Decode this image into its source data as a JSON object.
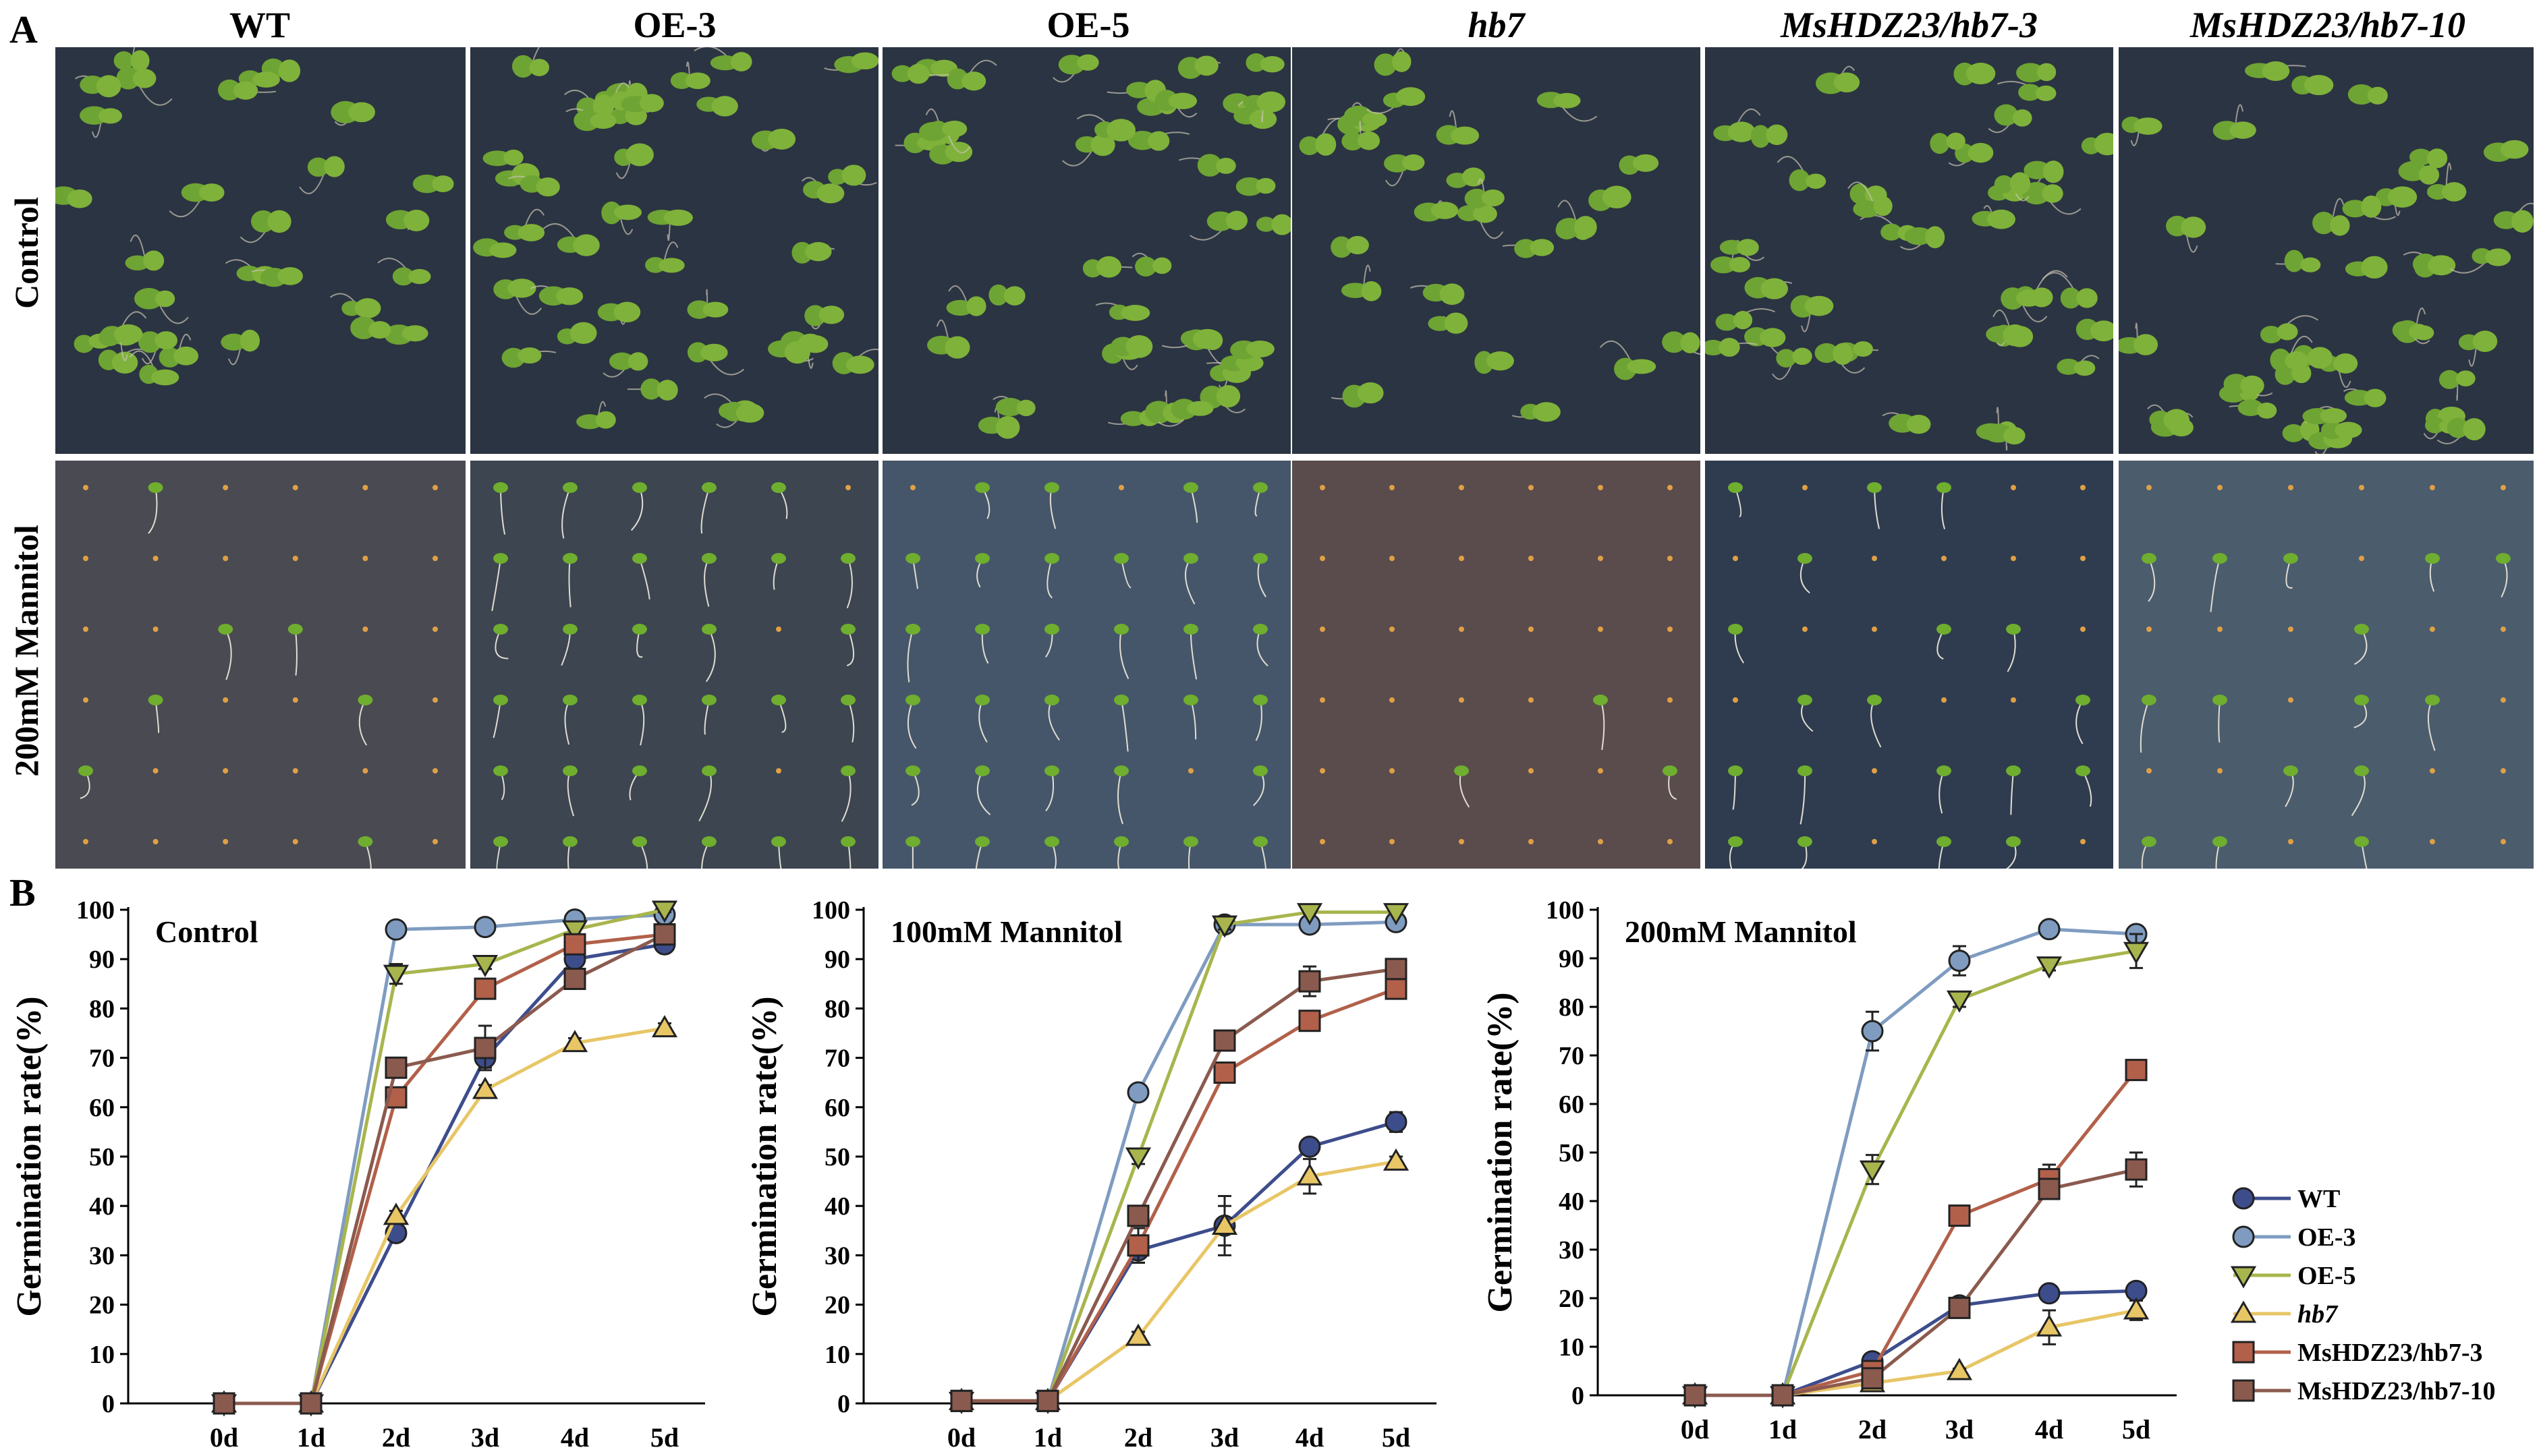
{
  "panel_a": {
    "letter": "A",
    "columns": [
      "WT",
      "OE-3",
      "OE-5",
      "hb7",
      "MsHDZ23/hb7-3",
      "MsHDZ23/hb7-10"
    ],
    "rows": [
      "Control",
      "200mM Mannitol"
    ]
  },
  "panel_b": {
    "letter": "B"
  },
  "colors": {
    "WT": "#3d4d8c",
    "OE-3": "#7f9cc0",
    "OE-5": "#a8b54d",
    "hb7": "#e8c666",
    "MsHDZ23/hb7-3": "#b2604a",
    "MsHDZ23/hb7-10": "#8b5a4e"
  },
  "chart_data": [
    {
      "type": "line",
      "title": "Control",
      "ylabel": "Germination rate(%)",
      "xlabel": "",
      "categories": [
        "0d",
        "1d",
        "2d",
        "3d",
        "4d",
        "5d"
      ],
      "yticks": [
        "0",
        "10",
        "20",
        "30",
        "40",
        "50",
        "60",
        "70",
        "80",
        "90",
        "100"
      ],
      "ylim": [
        0,
        100
      ],
      "series": [
        {
          "name": "WT",
          "values": [
            0,
            0,
            34.5,
            70,
            90,
            93
          ],
          "errors": [
            0,
            0,
            1,
            2,
            1.5,
            1
          ]
        },
        {
          "name": "OE-3",
          "values": [
            0,
            0,
            96,
            96.5,
            98,
            99
          ],
          "errors": [
            0,
            0,
            1,
            1,
            0.5,
            0.5
          ]
        },
        {
          "name": "OE-5",
          "values": [
            0,
            0,
            87,
            89,
            96,
            100
          ],
          "errors": [
            0,
            0,
            2,
            1,
            1,
            0.5
          ]
        },
        {
          "name": "hb7",
          "values": [
            0,
            0,
            38,
            63.5,
            73,
            76
          ],
          "errors": [
            0,
            0,
            1,
            1,
            1,
            1
          ]
        },
        {
          "name": "MsHDZ23/hb7-3",
          "values": [
            0,
            0,
            62,
            84,
            93,
            95
          ],
          "errors": [
            0,
            0,
            1,
            2,
            1,
            1
          ]
        },
        {
          "name": "MsHDZ23/hb7-10",
          "values": [
            0,
            0,
            68,
            72,
            86,
            95
          ],
          "errors": [
            0,
            0,
            1.5,
            4.5,
            1,
            1
          ]
        }
      ]
    },
    {
      "type": "line",
      "title": "100mM Mannitol",
      "ylabel": "Germination rate(%)",
      "xlabel": "",
      "categories": [
        "0d",
        "1d",
        "2d",
        "3d",
        "4d",
        "5d"
      ],
      "yticks": [
        "0",
        "10",
        "20",
        "30",
        "40",
        "50",
        "60",
        "70",
        "80",
        "90",
        "100"
      ],
      "ylim": [
        0,
        100
      ],
      "series": [
        {
          "name": "WT",
          "values": [
            0.5,
            0.5,
            31,
            36,
            52,
            57
          ],
          "errors": [
            0,
            0,
            2.5,
            6,
            1,
            2
          ]
        },
        {
          "name": "OE-3",
          "values": [
            0.5,
            0.5,
            63,
            97,
            97,
            97.5
          ],
          "errors": [
            0,
            0,
            1,
            0.5,
            0.5,
            0.5
          ]
        },
        {
          "name": "OE-5",
          "values": [
            0.5,
            0.5,
            50,
            97,
            99.5,
            99.5
          ],
          "errors": [
            0,
            0,
            1.5,
            1,
            0.3,
            0.3
          ]
        },
        {
          "name": "hb7",
          "values": [
            0.5,
            0.5,
            13.5,
            36,
            46,
            49
          ],
          "errors": [
            0,
            0,
            1,
            4,
            3.5,
            1
          ]
        },
        {
          "name": "MsHDZ23/hb7-3",
          "values": [
            0.5,
            0.5,
            32,
            67,
            77.5,
            84
          ],
          "errors": [
            0,
            0,
            3.5,
            1.5,
            1,
            1.5
          ]
        },
        {
          "name": "MsHDZ23/hb7-10",
          "values": [
            0.5,
            0.5,
            38,
            73.5,
            85.5,
            88
          ],
          "errors": [
            0,
            0,
            1,
            1,
            3,
            1
          ]
        }
      ]
    },
    {
      "type": "line",
      "title": "200mM Mannitol",
      "ylabel": "Germination rate(%)",
      "xlabel": "",
      "categories": [
        "0d",
        "1d",
        "2d",
        "3d",
        "4d",
        "5d"
      ],
      "yticks": [
        "0",
        "10",
        "20",
        "30",
        "40",
        "50",
        "60",
        "70",
        "80",
        "90",
        "100"
      ],
      "ylim": [
        0,
        100
      ],
      "legend_position": "right",
      "series": [
        {
          "name": "WT",
          "values": [
            0,
            0,
            7,
            18.5,
            21,
            21.5
          ],
          "errors": [
            0,
            0,
            1,
            1,
            1,
            1
          ]
        },
        {
          "name": "OE-3",
          "values": [
            0,
            0,
            75,
            89.5,
            96,
            95
          ],
          "errors": [
            0,
            0,
            4,
            3,
            0.5,
            1.5
          ]
        },
        {
          "name": "OE-5",
          "values": [
            0,
            0,
            46.5,
            81.5,
            88.5,
            91.5
          ],
          "errors": [
            0,
            0,
            3,
            1.5,
            1,
            3.5
          ]
        },
        {
          "name": "hb7",
          "values": [
            0,
            0,
            2.5,
            5,
            14,
            17.5
          ],
          "errors": [
            0,
            0,
            0.5,
            0.5,
            3.5,
            2
          ]
        },
        {
          "name": "MsHDZ23/hb7-3",
          "values": [
            0,
            0,
            5,
            37,
            44.5,
            67
          ],
          "errors": [
            0,
            0,
            1,
            2,
            3,
            0.5
          ]
        },
        {
          "name": "MsHDZ23/hb7-10",
          "values": [
            0,
            0,
            3.5,
            18,
            42.5,
            46.5
          ],
          "errors": [
            0,
            0,
            0.5,
            1,
            2,
            3.5
          ]
        }
      ]
    }
  ]
}
